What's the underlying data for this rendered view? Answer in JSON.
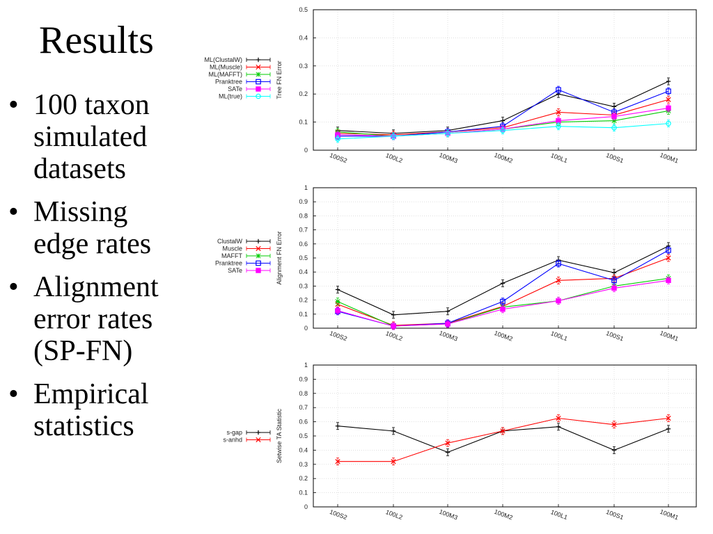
{
  "slide": {
    "title": "Results",
    "bullets": [
      "100 taxon simulated datasets",
      "Missing edge rates",
      "Alignment error rates (SP-FN)",
      "Empirical statistics"
    ]
  },
  "chart_data": [
    {
      "type": "line",
      "ylabel": "Tree FN Error",
      "categories": [
        "100S2",
        "100L2",
        "100M3",
        "100M2",
        "100L1",
        "100S1",
        "100M1"
      ],
      "ylim": [
        0,
        0.5
      ],
      "yticks": [
        0,
        0.1,
        0.2,
        0.3,
        0.4,
        0.5
      ],
      "grid": true,
      "legend": "left",
      "series": [
        {
          "name": "ML(ClustalW)",
          "color": "#000000",
          "marker": "plus",
          "values": [
            0.07,
            0.06,
            0.07,
            0.105,
            0.2,
            0.155,
            0.245
          ]
        },
        {
          "name": "ML(Muscle)",
          "color": "#ff0000",
          "marker": "x",
          "values": [
            0.06,
            0.055,
            0.065,
            0.08,
            0.135,
            0.125,
            0.18
          ]
        },
        {
          "name": "ML(MAFFT)",
          "color": "#00cc00",
          "marker": "star",
          "values": [
            0.065,
            0.05,
            0.06,
            0.075,
            0.1,
            0.105,
            0.14
          ]
        },
        {
          "name": "Pranktree",
          "color": "#0000ff",
          "marker": "square",
          "values": [
            0.05,
            0.05,
            0.065,
            0.085,
            0.215,
            0.135,
            0.21
          ]
        },
        {
          "name": "SATe",
          "color": "#ff00ff",
          "marker": "filledsquare",
          "values": [
            0.055,
            0.05,
            0.06,
            0.075,
            0.105,
            0.12,
            0.15
          ]
        },
        {
          "name": "ML(true)",
          "color": "#00ffff",
          "marker": "circle",
          "values": [
            0.04,
            0.05,
            0.06,
            0.07,
            0.085,
            0.08,
            0.095
          ]
        }
      ]
    },
    {
      "type": "line",
      "ylabel": "Alignment FN Error",
      "categories": [
        "100S2",
        "100L2",
        "100M3",
        "100M2",
        "100L1",
        "100S1",
        "100M1"
      ],
      "ylim": [
        0,
        1
      ],
      "yticks": [
        0,
        0.1,
        0.2,
        0.3,
        0.4,
        0.5,
        0.6,
        0.7,
        0.8,
        0.9,
        1
      ],
      "grid": true,
      "legend": "left",
      "series": [
        {
          "name": "ClustalW",
          "color": "#000000",
          "marker": "plus",
          "values": [
            0.275,
            0.095,
            0.12,
            0.32,
            0.485,
            0.395,
            0.585
          ]
        },
        {
          "name": "Muscle",
          "color": "#ff0000",
          "marker": "x",
          "values": [
            0.17,
            0.02,
            0.035,
            0.155,
            0.34,
            0.355,
            0.5
          ]
        },
        {
          "name": "MAFFT",
          "color": "#00cc00",
          "marker": "star",
          "values": [
            0.19,
            0.015,
            0.03,
            0.15,
            0.195,
            0.3,
            0.355
          ]
        },
        {
          "name": "Pranktree",
          "color": "#0000ff",
          "marker": "square",
          "values": [
            0.12,
            0.015,
            0.035,
            0.19,
            0.46,
            0.34,
            0.555
          ]
        },
        {
          "name": "SATe",
          "color": "#ff00ff",
          "marker": "filledsquare",
          "values": [
            0.125,
            0.015,
            0.03,
            0.135,
            0.195,
            0.285,
            0.34
          ]
        }
      ]
    },
    {
      "type": "line",
      "ylabel": "Setwise TA Statistic",
      "categories": [
        "100S2",
        "100L2",
        "100M3",
        "100M2",
        "100L1",
        "100S1",
        "100M1"
      ],
      "ylim": [
        0,
        1
      ],
      "yticks": [
        0,
        0.1,
        0.2,
        0.3,
        0.4,
        0.5,
        0.6,
        0.7,
        0.8,
        0.9,
        1
      ],
      "grid": true,
      "legend": "left",
      "series": [
        {
          "name": "s-gap",
          "color": "#000000",
          "marker": "plus",
          "values": [
            0.57,
            0.535,
            0.385,
            0.535,
            0.565,
            0.4,
            0.55
          ]
        },
        {
          "name": "s-anhd",
          "color": "#ff0000",
          "marker": "x",
          "values": [
            0.32,
            0.32,
            0.45,
            0.535,
            0.625,
            0.58,
            0.625
          ]
        }
      ]
    }
  ]
}
